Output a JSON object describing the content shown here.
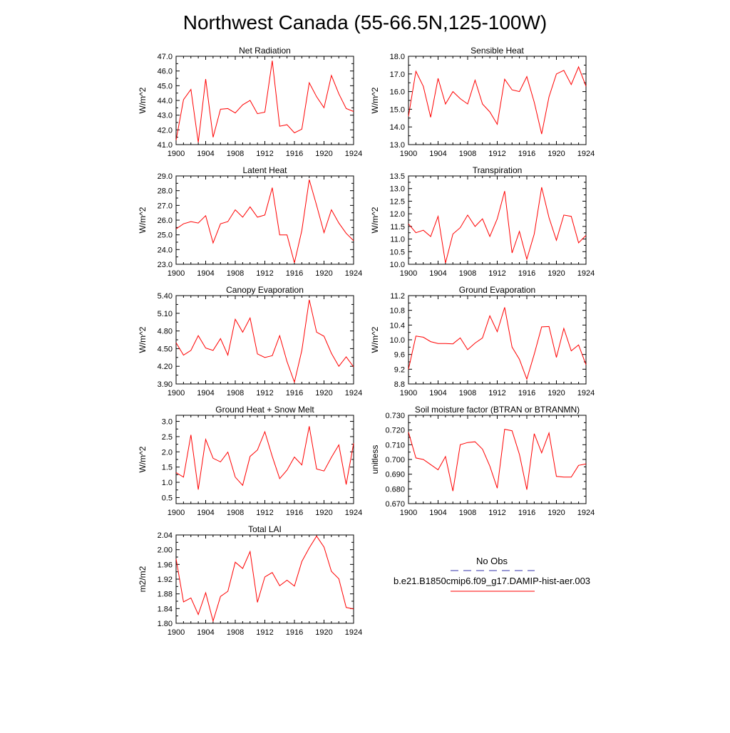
{
  "title": "Northwest Canada (55-66.5N,125-100W)",
  "colors": {
    "model_line": "#ff0000",
    "obs_line": "#3333aa",
    "frame": "#000000"
  },
  "legend": {
    "obs_label": "No Obs",
    "model_label": "b.e21.B1850cmip6.f09_g17.DAMIP-hist-aer.003"
  },
  "chart_data": [
    {
      "type": "line",
      "title": "Net Radiation",
      "ylabel": "W/m^2",
      "xlim": [
        1900,
        1924
      ],
      "ylim": [
        41.0,
        47.0
      ],
      "xticks": [
        "1900",
        "1904",
        "1908",
        "1912",
        "1916",
        "1920",
        "1924"
      ],
      "yticks": [
        "41.0",
        "42.0",
        "43.0",
        "44.0",
        "45.0",
        "46.0",
        "47.0"
      ],
      "x": [
        1900,
        1901,
        1902,
        1903,
        1904,
        1905,
        1906,
        1907,
        1908,
        1909,
        1910,
        1911,
        1912,
        1913,
        1914,
        1915,
        1916,
        1917,
        1918,
        1919,
        1920,
        1921,
        1922,
        1923,
        1924
      ],
      "series": [
        {
          "values": [
            41.3,
            44.05,
            44.75,
            41.15,
            45.45,
            41.5,
            43.4,
            43.45,
            43.15,
            43.7,
            44.0,
            43.1,
            43.2,
            46.7,
            42.25,
            42.35,
            41.8,
            42.05,
            45.2,
            44.25,
            43.5,
            45.7,
            44.45,
            43.45,
            43.25
          ]
        }
      ]
    },
    {
      "type": "line",
      "title": "Sensible Heat",
      "ylabel": "W/m^2",
      "xlim": [
        1900,
        1924
      ],
      "ylim": [
        13.0,
        18.0
      ],
      "xticks": [
        "1900",
        "1904",
        "1908",
        "1912",
        "1916",
        "1920",
        "1924"
      ],
      "yticks": [
        "13.0",
        "14.0",
        "15.0",
        "16.0",
        "17.0",
        "18.0"
      ],
      "x": [
        1900,
        1901,
        1902,
        1903,
        1904,
        1905,
        1906,
        1907,
        1908,
        1909,
        1910,
        1911,
        1912,
        1913,
        1914,
        1915,
        1916,
        1917,
        1918,
        1919,
        1920,
        1921,
        1922,
        1923,
        1924
      ],
      "series": [
        {
          "values": [
            14.6,
            17.15,
            16.3,
            14.55,
            16.75,
            15.3,
            16.0,
            15.6,
            15.3,
            16.65,
            15.3,
            14.85,
            14.15,
            16.7,
            16.1,
            16.0,
            16.85,
            15.4,
            13.6,
            15.7,
            17.0,
            17.2,
            16.4,
            17.4,
            16.3
          ]
        }
      ]
    },
    {
      "type": "line",
      "title": "Latent Heat",
      "ylabel": "W/m^2",
      "xlim": [
        1900,
        1924
      ],
      "ylim": [
        23.0,
        29.0
      ],
      "xticks": [
        "1900",
        "1904",
        "1908",
        "1912",
        "1916",
        "1920",
        "1924"
      ],
      "yticks": [
        "23.0",
        "24.0",
        "25.0",
        "26.0",
        "27.0",
        "28.0",
        "29.0"
      ],
      "x": [
        1900,
        1901,
        1902,
        1903,
        1904,
        1905,
        1906,
        1907,
        1908,
        1909,
        1910,
        1911,
        1912,
        1913,
        1914,
        1915,
        1916,
        1917,
        1918,
        1919,
        1920,
        1921,
        1922,
        1923,
        1924
      ],
      "series": [
        {
          "values": [
            25.4,
            25.75,
            25.9,
            25.8,
            26.3,
            24.45,
            25.75,
            25.9,
            26.7,
            26.2,
            26.9,
            26.2,
            26.35,
            28.2,
            25.0,
            25.0,
            23.1,
            25.3,
            28.75,
            27.0,
            25.15,
            26.7,
            25.8,
            25.1,
            24.6
          ]
        }
      ]
    },
    {
      "type": "line",
      "title": "Transpiration",
      "ylabel": "W/m^2",
      "xlim": [
        1900,
        1924
      ],
      "ylim": [
        10.0,
        13.5
      ],
      "xticks": [
        "1900",
        "1904",
        "1908",
        "1912",
        "1916",
        "1920",
        "1924"
      ],
      "yticks": [
        "10.0",
        "10.5",
        "11.0",
        "11.5",
        "12.0",
        "12.5",
        "13.0",
        "13.5"
      ],
      "x": [
        1900,
        1901,
        1902,
        1903,
        1904,
        1905,
        1906,
        1907,
        1908,
        1909,
        1910,
        1911,
        1912,
        1913,
        1914,
        1915,
        1916,
        1917,
        1918,
        1919,
        1920,
        1921,
        1922,
        1923,
        1924
      ],
      "series": [
        {
          "values": [
            11.6,
            11.25,
            11.35,
            11.1,
            11.9,
            10.05,
            11.2,
            11.45,
            11.95,
            11.5,
            11.8,
            11.1,
            11.8,
            12.9,
            10.45,
            11.3,
            10.2,
            11.2,
            13.05,
            11.85,
            10.95,
            11.95,
            11.9,
            10.85,
            11.15
          ]
        }
      ]
    },
    {
      "type": "line",
      "title": "Canopy Evaporation",
      "ylabel": "W/m^2",
      "xlim": [
        1900,
        1924
      ],
      "ylim": [
        3.9,
        5.4
      ],
      "xticks": [
        "1900",
        "1904",
        "1908",
        "1912",
        "1916",
        "1920",
        "1924"
      ],
      "yticks": [
        "3.90",
        "4.20",
        "4.50",
        "4.80",
        "5.10",
        "5.40"
      ],
      "x": [
        1900,
        1901,
        1902,
        1903,
        1904,
        1905,
        1906,
        1907,
        1908,
        1909,
        1910,
        1911,
        1912,
        1913,
        1914,
        1915,
        1916,
        1917,
        1918,
        1919,
        1920,
        1921,
        1922,
        1923,
        1924
      ],
      "series": [
        {
          "values": [
            4.6,
            4.39,
            4.47,
            4.72,
            4.51,
            4.47,
            4.67,
            4.39,
            5.0,
            4.78,
            5.02,
            4.41,
            4.35,
            4.38,
            4.72,
            4.28,
            3.93,
            4.47,
            5.33,
            4.78,
            4.71,
            4.42,
            4.2,
            4.36,
            4.19
          ]
        }
      ]
    },
    {
      "type": "line",
      "title": "Ground Evaporation",
      "ylabel": "W/m^2",
      "xlim": [
        1900,
        1924
      ],
      "ylim": [
        8.8,
        11.2
      ],
      "xticks": [
        "1900",
        "1904",
        "1908",
        "1912",
        "1916",
        "1920",
        "1924"
      ],
      "yticks": [
        "8.8",
        "9.2",
        "9.6",
        "10.0",
        "10.4",
        "10.8",
        "11.2"
      ],
      "x": [
        1900,
        1901,
        1902,
        1903,
        1904,
        1905,
        1906,
        1907,
        1908,
        1909,
        1910,
        1911,
        1912,
        1913,
        1914,
        1915,
        1916,
        1917,
        1918,
        1919,
        1920,
        1921,
        1922,
        1923,
        1924
      ],
      "series": [
        {
          "values": [
            9.2,
            10.1,
            10.07,
            9.95,
            9.9,
            9.9,
            9.89,
            10.05,
            9.73,
            9.91,
            10.05,
            10.65,
            10.22,
            10.88,
            9.8,
            9.47,
            8.93,
            9.61,
            10.35,
            10.36,
            9.52,
            10.31,
            9.7,
            9.86,
            9.32
          ]
        }
      ]
    },
    {
      "type": "line",
      "title": "Ground Heat + Snow Melt",
      "ylabel": "W/m^2",
      "xlim": [
        1900,
        1924
      ],
      "ylim": [
        0.3,
        3.2
      ],
      "xticks": [
        "1900",
        "1904",
        "1908",
        "1912",
        "1916",
        "1920",
        "1924"
      ],
      "yticks": [
        "0.5",
        "1.0",
        "1.5",
        "2.0",
        "2.5",
        "3.0"
      ],
      "x": [
        1900,
        1901,
        1902,
        1903,
        1904,
        1905,
        1906,
        1907,
        1908,
        1909,
        1910,
        1911,
        1912,
        1913,
        1914,
        1915,
        1916,
        1917,
        1918,
        1919,
        1920,
        1921,
        1922,
        1923,
        1924
      ],
      "series": [
        {
          "values": [
            1.32,
            1.17,
            2.56,
            0.76,
            2.41,
            1.79,
            1.67,
            1.99,
            1.17,
            0.9,
            1.85,
            2.06,
            2.66,
            1.85,
            1.12,
            1.4,
            1.83,
            1.57,
            2.84,
            1.44,
            1.37,
            1.82,
            2.23,
            0.93,
            2.28
          ]
        }
      ]
    },
    {
      "type": "line",
      "title": "Soil moisture factor (BTRAN or BTRANMN)",
      "ylabel": "unitless",
      "xlim": [
        1900,
        1924
      ],
      "ylim": [
        0.67,
        0.73
      ],
      "xticks": [
        "1900",
        "1904",
        "1908",
        "1912",
        "1916",
        "1920",
        "1924"
      ],
      "yticks": [
        "0.670",
        "0.680",
        "0.690",
        "0.700",
        "0.710",
        "0.720",
        "0.730"
      ],
      "x": [
        1900,
        1901,
        1902,
        1903,
        1904,
        1905,
        1906,
        1907,
        1908,
        1909,
        1910,
        1911,
        1912,
        1913,
        1914,
        1915,
        1916,
        1917,
        1918,
        1919,
        1920,
        1921,
        1922,
        1923,
        1924
      ],
      "series": [
        {
          "values": [
            0.7185,
            0.701,
            0.7,
            0.6965,
            0.693,
            0.702,
            0.6785,
            0.71,
            0.7115,
            0.712,
            0.707,
            0.6955,
            0.6805,
            0.7205,
            0.7195,
            0.7035,
            0.6795,
            0.7175,
            0.7045,
            0.718,
            0.6885,
            0.688,
            0.688,
            0.696,
            0.697
          ]
        }
      ]
    },
    {
      "type": "line",
      "title": "Total LAI",
      "ylabel": "m2/m2",
      "xlim": [
        1900,
        1924
      ],
      "ylim": [
        1.8,
        2.04
      ],
      "xticks": [
        "1900",
        "1904",
        "1908",
        "1912",
        "1916",
        "1920",
        "1924"
      ],
      "yticks": [
        "1.80",
        "1.84",
        "1.88",
        "1.92",
        "1.96",
        "2.00",
        "2.04"
      ],
      "x": [
        1900,
        1901,
        1902,
        1903,
        1904,
        1905,
        1906,
        1907,
        1908,
        1909,
        1910,
        1911,
        1912,
        1913,
        1914,
        1915,
        1916,
        1917,
        1918,
        1919,
        1920,
        1921,
        1922,
        1923,
        1924
      ],
      "series": [
        {
          "values": [
            1.975,
            1.858,
            1.869,
            1.824,
            1.883,
            1.806,
            1.873,
            1.887,
            1.966,
            1.949,
            1.995,
            1.857,
            1.926,
            1.938,
            1.902,
            1.917,
            1.901,
            1.968,
            2.005,
            2.037,
            2.007,
            1.941,
            1.921,
            1.843,
            1.839
          ]
        }
      ]
    }
  ]
}
